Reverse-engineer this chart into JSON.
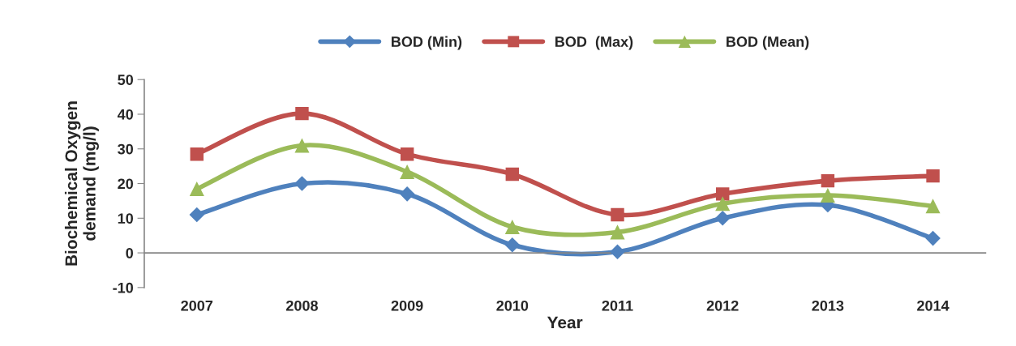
{
  "chart_data": {
    "type": "line",
    "xlabel": "Year",
    "ylabel": "Biochemical Oxygen\ndemand (mg/l)",
    "categories": [
      "2007",
      "2008",
      "2009",
      "2010",
      "2011",
      "2012",
      "2013",
      "2014"
    ],
    "series": [
      {
        "name": "BOD (Min)",
        "color": "#4f81bd",
        "marker": "diamond",
        "values": [
          11,
          20,
          17,
          2.3,
          0.3,
          10,
          13.8,
          4.2
        ]
      },
      {
        "name": "BOD  (Max)",
        "color": "#c0504d",
        "marker": "square",
        "values": [
          28.5,
          40.2,
          28.5,
          22.7,
          11,
          17,
          20.8,
          22.2
        ]
      },
      {
        "name": "BOD (Mean)",
        "color": "#9bbb59",
        "marker": "triangle",
        "values": [
          18.5,
          31,
          23.4,
          7.5,
          6,
          14.2,
          16.6,
          13.5
        ]
      }
    ],
    "ylim": [
      -10,
      50
    ],
    "yticks": [
      -10,
      0,
      10,
      20,
      30,
      40,
      50
    ],
    "legend": "top",
    "line_style": "solid"
  }
}
